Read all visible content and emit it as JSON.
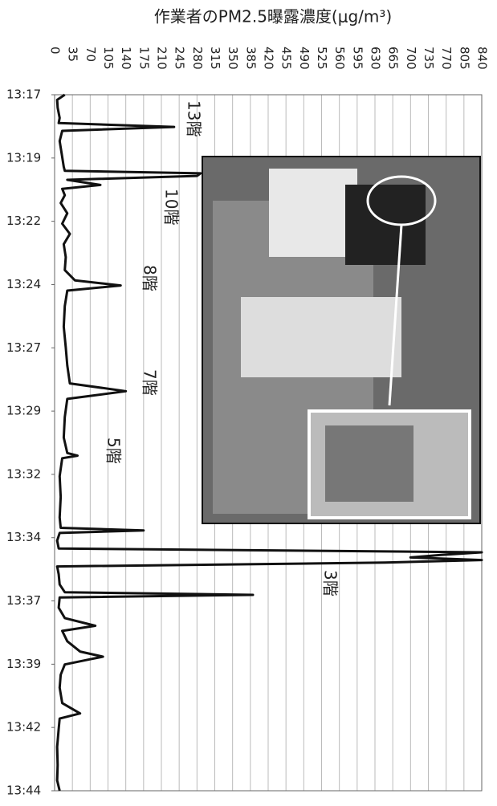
{
  "chart_data": {
    "type": "line",
    "title": "作業者のPM2.5曝露濃度(μg/m³)",
    "color": "#111111",
    "xlim": [
      0,
      840
    ],
    "xticks": [
      0,
      35,
      70,
      105,
      140,
      175,
      210,
      245,
      280,
      315,
      350,
      385,
      420,
      455,
      490,
      525,
      560,
      595,
      630,
      665,
      700,
      735,
      770,
      805,
      840
    ],
    "ylim": [
      797,
      824
    ],
    "yticks": [
      {
        "value": 797,
        "label": "13:17"
      },
      {
        "value": 799.455,
        "label": "13:19"
      },
      {
        "value": 801.909,
        "label": "13:22"
      },
      {
        "value": 804.364,
        "label": "13:24"
      },
      {
        "value": 806.818,
        "label": "13:27"
      },
      {
        "value": 809.273,
        "label": "13:29"
      },
      {
        "value": 811.727,
        "label": "13:32"
      },
      {
        "value": 814.182,
        "label": "13:34"
      },
      {
        "value": 816.636,
        "label": "13:37"
      },
      {
        "value": 819.091,
        "label": "13:39"
      },
      {
        "value": 821.545,
        "label": "13:42"
      },
      {
        "value": 824,
        "label": "13:44"
      }
    ],
    "grid": true,
    "time": [
      797.0,
      797.2,
      797.5,
      797.9,
      798.1,
      798.25,
      798.4,
      798.8,
      799.3,
      799.8,
      799.95,
      800.05,
      800.15,
      800.3,
      800.5,
      800.65,
      800.9,
      801.2,
      801.6,
      802.0,
      802.4,
      802.8,
      803.3,
      803.8,
      804.2,
      804.4,
      804.6,
      805.2,
      806.0,
      806.8,
      807.5,
      808.2,
      808.5,
      808.8,
      809.5,
      810.3,
      810.9,
      811.0,
      811.1,
      811.8,
      812.6,
      813.4,
      813.8,
      813.9,
      814.0,
      814.3,
      814.6,
      814.75,
      814.85,
      814.95,
      815.05,
      815.15,
      815.3,
      815.6,
      816.0,
      816.3,
      816.4,
      816.5,
      816.9,
      817.3,
      817.6,
      817.8,
      818.2,
      818.6,
      818.8,
      818.9,
      819.1,
      819.5,
      820.0,
      820.6,
      821.0,
      821.2,
      821.6,
      822.3,
      823.0,
      823.6,
      824.0
    ],
    "values": [
      20,
      5,
      6,
      10,
      8,
      235,
      15,
      10,
      14,
      18,
      20,
      287,
      280,
      25,
      90,
      15,
      20,
      12,
      25,
      15,
      30,
      18,
      22,
      20,
      40,
      130,
      25,
      20,
      18,
      22,
      25,
      30,
      140,
      25,
      20,
      18,
      25,
      45,
      15,
      10,
      12,
      10,
      12,
      175,
      10,
      5,
      8,
      840,
      760,
      700,
      840,
      650,
      5,
      8,
      10,
      20,
      390,
      10,
      8,
      20,
      80,
      15,
      25,
      50,
      95,
      70,
      20,
      12,
      10,
      15,
      50,
      10,
      8,
      5,
      6,
      5,
      10
    ],
    "annotations": [
      "13階",
      "10階",
      "8階",
      "7階",
      "5階",
      "3階"
    ]
  }
}
